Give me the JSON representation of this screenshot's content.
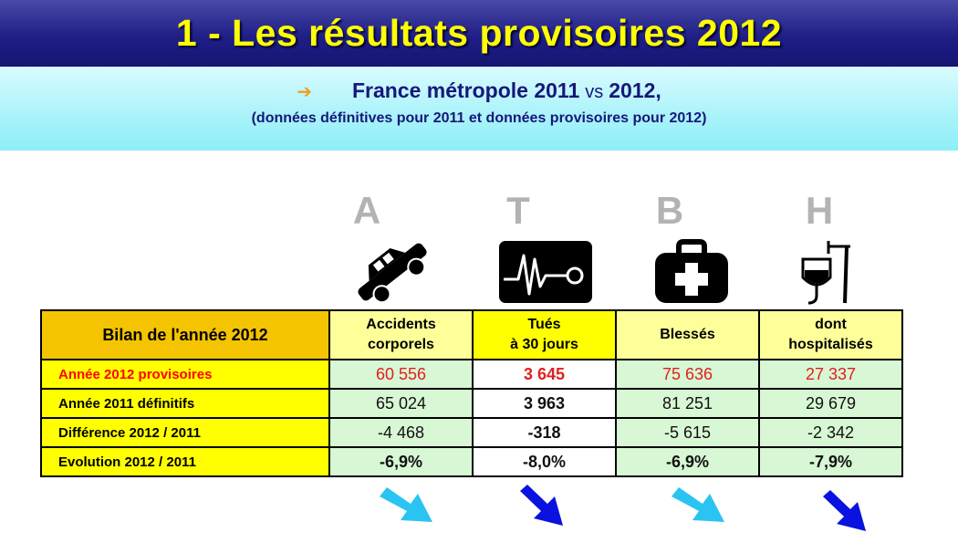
{
  "header": {
    "title": "1 - Les résultats provisoires 2012"
  },
  "subheader": {
    "arrow_glyph": "➔",
    "line1_part1": "France métropole 2011",
    "line1_vs": "vs",
    "line1_part2": "2012,",
    "line2": "(données définitives pour 2011 et données provisoires pour 2012)"
  },
  "columns": [
    {
      "letter": "A",
      "icon": "car-crash-icon",
      "label_line1": "Accidents",
      "label_line2": "corporels"
    },
    {
      "letter": "T",
      "icon": "heart-monitor-icon",
      "label_line1": "Tués",
      "label_line2": "à 30 jours"
    },
    {
      "letter": "B",
      "icon": "first-aid-kit-icon",
      "label_line1": "Blessés",
      "label_line2": ""
    },
    {
      "letter": "H",
      "icon": "iv-drip-icon",
      "label_line1": "dont",
      "label_line2": "hospitalisés"
    }
  ],
  "table": {
    "corner_label": "Bilan de l'année 2012",
    "rows": [
      {
        "label": "Année 2012 provisoires",
        "values": [
          "60 556",
          "3 645",
          "75 636",
          "27 337"
        ]
      },
      {
        "label": "Année 2011 définitifs",
        "values": [
          "65 024",
          "3 963",
          "81 251",
          "29 679"
        ]
      },
      {
        "label": "Différence 2012 / 2011",
        "values": [
          "-4 468",
          "-318",
          "-5 615",
          "-2 342"
        ]
      },
      {
        "label": "Evolution 2012 / 2011",
        "values": [
          "-6,9%",
          "-8,0%",
          "-6,9%",
          "-7,9%"
        ]
      }
    ]
  },
  "trend_arrows": [
    {
      "column": "A",
      "color": "#29c4f2",
      "icon": "arrow-down-right-icon"
    },
    {
      "column": "T",
      "color": "#0a12e0",
      "icon": "arrow-down-right-icon"
    },
    {
      "column": "B",
      "color": "#29c4f2",
      "icon": "arrow-down-right-icon"
    },
    {
      "column": "H",
      "color": "#0a12e0",
      "icon": "arrow-down-right-icon"
    }
  ],
  "colors": {
    "title_text": "#ffff00",
    "title_bg": "#1e1e86",
    "subheader_bg": "#a9f3fa",
    "corner_cell": "#f5c400",
    "row_label_bg": "#ffff00",
    "value_bg": "#d8f7d4",
    "highlight_red": "#ff0000"
  }
}
